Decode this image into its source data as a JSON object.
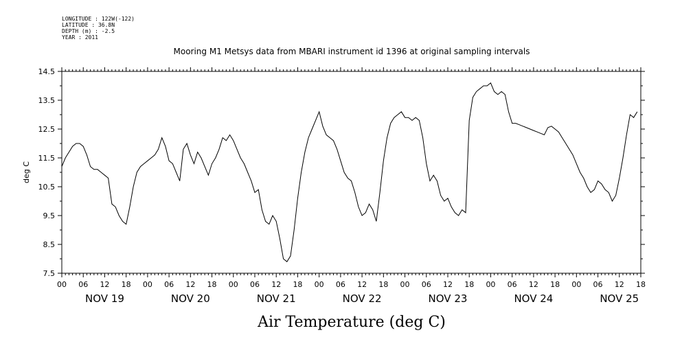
{
  "meta_lines": [
    "LONGITUDE : 122W(-122)",
    "LATITUDE : 36.8N",
    "DEPTH (m) : -2.5",
    "YEAR : 2011"
  ],
  "chart_data": {
    "type": "line",
    "title": "Mooring M1 Metsys data from MBARI instrument id 1396 at original sampling intervals",
    "xlabel": "Air Temperature (deg C)",
    "ylabel": "deg C",
    "ylim": [
      7.5,
      14.5
    ],
    "yticks": [
      7.5,
      8.5,
      9.5,
      10.5,
      11.5,
      12.5,
      13.5,
      14.5
    ],
    "xlim_hours": [
      0,
      162
    ],
    "hour_tick_labels": [
      "00",
      "06",
      "12",
      "18"
    ],
    "day_labels": [
      "NOV 19",
      "NOV 20",
      "NOV 21",
      "NOV 22",
      "NOV 23",
      "NOV 24",
      "NOV 25"
    ],
    "grid": false,
    "series": [
      {
        "x": [
          0,
          1,
          2,
          3,
          4,
          5,
          6,
          7,
          8,
          9,
          10,
          11,
          12,
          13,
          14,
          15,
          16,
          17,
          18,
          19,
          20,
          21,
          22,
          23,
          24,
          25,
          26,
          27,
          28,
          29,
          30,
          31,
          32,
          33,
          34,
          35,
          36,
          37,
          38,
          39,
          40,
          41,
          42,
          43,
          44,
          45,
          46,
          47,
          48,
          49,
          50,
          51,
          52,
          53,
          54,
          55,
          56,
          57,
          58,
          59,
          60,
          61,
          62,
          63,
          64,
          65,
          66,
          67,
          68,
          69,
          70,
          71,
          72,
          73,
          74,
          75,
          76,
          77,
          78,
          79,
          80,
          81,
          82,
          83,
          84,
          85,
          86,
          87,
          88,
          89,
          90,
          91,
          92,
          93,
          94,
          95,
          96,
          97,
          98,
          99,
          100,
          101,
          102,
          103,
          104,
          105,
          106,
          107,
          108,
          109,
          110,
          111,
          112,
          113,
          114,
          115,
          116,
          117,
          118,
          119,
          120,
          121,
          122,
          123,
          124,
          125,
          126,
          127,
          128,
          129,
          130,
          131,
          132,
          133,
          134,
          135,
          136,
          137,
          138,
          139,
          140,
          141,
          142,
          143,
          144,
          145,
          146,
          147,
          148,
          149,
          150,
          151,
          152,
          153,
          154,
          155,
          156,
          157,
          158,
          159,
          160,
          161
        ],
        "values": [
          11.2,
          11.5,
          11.7,
          11.9,
          12.0,
          12.0,
          11.9,
          11.6,
          11.2,
          11.1,
          11.1,
          11.0,
          10.9,
          10.8,
          9.9,
          9.8,
          9.5,
          9.3,
          9.2,
          9.8,
          10.5,
          11.0,
          11.2,
          11.3,
          11.4,
          11.5,
          11.6,
          11.8,
          12.2,
          11.9,
          11.4,
          11.3,
          11.0,
          10.7,
          11.8,
          12.0,
          11.6,
          11.3,
          11.7,
          11.5,
          11.2,
          10.9,
          11.3,
          11.5,
          11.8,
          12.2,
          12.1,
          12.3,
          12.1,
          11.8,
          11.5,
          11.3,
          11.0,
          10.7,
          10.3,
          10.4,
          9.7,
          9.3,
          9.2,
          9.5,
          9.3,
          8.7,
          8.0,
          7.9,
          8.1,
          9.0,
          10.1,
          11.0,
          11.7,
          12.2,
          12.5,
          12.8,
          13.1,
          12.6,
          12.3,
          12.2,
          12.1,
          11.8,
          11.4,
          11.0,
          10.8,
          10.7,
          10.3,
          9.8,
          9.5,
          9.6,
          9.9,
          9.7,
          9.3,
          10.3,
          11.4,
          12.2,
          12.7,
          12.9,
          13.0,
          13.1,
          12.9,
          12.9,
          12.8,
          12.9,
          12.8,
          12.2,
          11.3,
          10.7,
          10.9,
          10.7,
          10.2,
          10.0,
          10.1,
          9.8,
          9.6,
          9.5,
          9.7,
          9.6,
          12.8,
          13.6,
          13.8,
          13.9,
          14.0,
          14.0,
          14.1,
          13.8,
          13.7,
          13.8,
          13.7,
          13.1,
          12.7,
          12.7,
          12.65,
          12.6,
          12.55,
          12.5,
          12.45,
          12.4,
          12.35,
          12.3,
          12.55,
          12.6,
          12.5,
          12.4,
          12.2,
          12.0,
          11.8,
          11.6,
          11.3,
          11.0,
          10.8,
          10.5,
          10.3,
          10.4,
          10.7,
          10.6,
          10.4,
          10.3,
          10.0,
          10.2,
          10.8,
          11.5,
          12.3,
          13.0,
          12.9,
          13.1
        ]
      }
    ]
  }
}
